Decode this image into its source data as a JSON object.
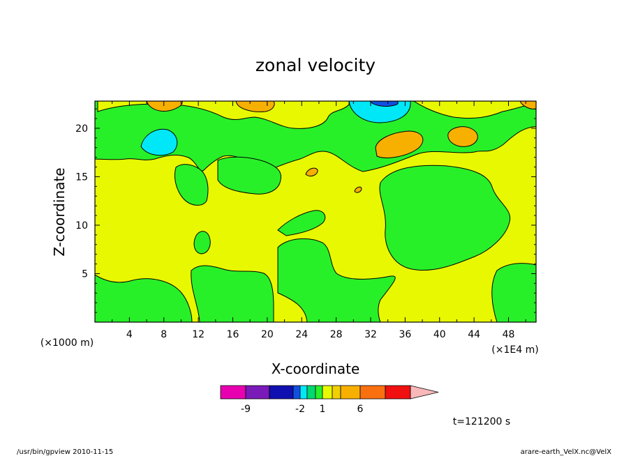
{
  "chart_data": {
    "type": "heatmap",
    "title": "zonal velocity",
    "xlabel": "X-coordinate",
    "ylabel": "Z-coordinate",
    "x_unit_label": "(×1000 m)",
    "x_scale_label": "(×1E4 m)",
    "xlim": [
      0,
      51.2
    ],
    "ylim": [
      0,
      22.8
    ],
    "x_ticks": [
      "4",
      "8",
      "12",
      "16",
      "20",
      "24",
      "28",
      "32",
      "36",
      "40",
      "44",
      "48"
    ],
    "y_ticks": [
      "5",
      "10",
      "15",
      "20"
    ],
    "colorbar": {
      "levels": [
        -12,
        -9,
        -6,
        -3,
        -2,
        -1,
        0,
        1,
        2,
        3,
        6,
        9,
        12,
        15
      ],
      "colors": [
        "#e800b0",
        "#7a1ab8",
        "#1010b0",
        "#1050e0",
        "#00e8f8",
        "#00d870",
        "#28f028",
        "#e8f800",
        "#f0d000",
        "#f8b000",
        "#f87010",
        "#f01010",
        "#f87878",
        "#f8b8b8"
      ],
      "tick_labels": [
        "-9",
        "-2",
        "1",
        "6"
      ]
    },
    "time_label": "t=121200 s",
    "regions_note": "Dominant values: 0 to 1 (green) and 1 to 2 (yellow); local maxima 2-3 (orange) near top; minima -1 to -2 (cyan) near (8,19) and (33,22)"
  },
  "footer": {
    "left": "/usr/bin/gpview   2010-11-15",
    "right": "arare-earth_VelX.nc@VelX"
  }
}
